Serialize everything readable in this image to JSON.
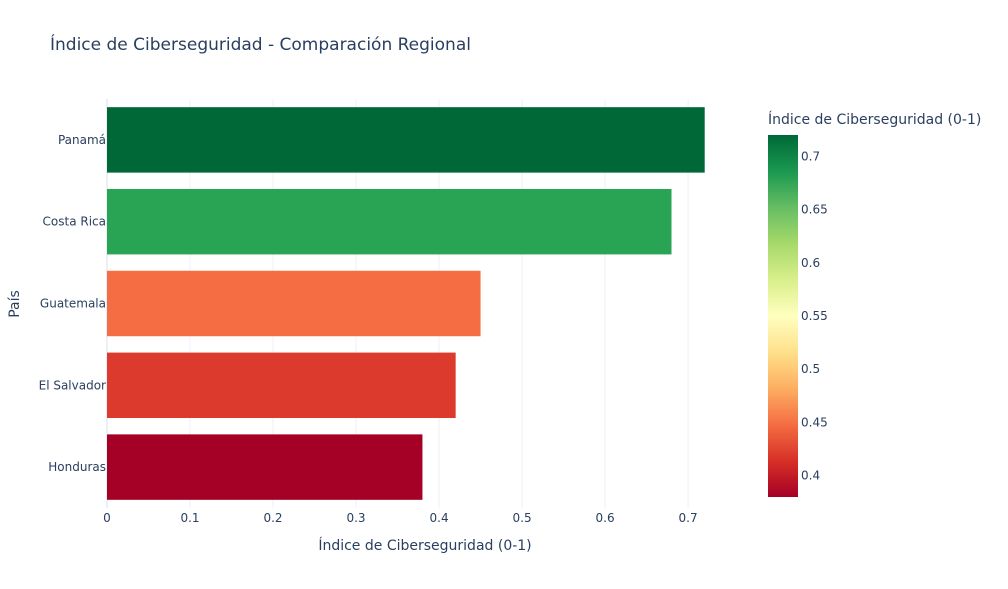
{
  "chart_data": {
    "type": "bar",
    "orientation": "horizontal",
    "title": "Índice de Ciberseguridad - Comparación Regional",
    "xlabel": "Índice de Ciberseguridad (0-1)",
    "ylabel": "País",
    "categories": [
      "Panamá",
      "Costa Rica",
      "Guatemala",
      "El Salvador",
      "Honduras"
    ],
    "values": [
      0.72,
      0.68,
      0.45,
      0.42,
      0.38
    ],
    "bar_colors": [
      "#006837",
      "#29a354",
      "#f46d43",
      "#db3a2c",
      "#a50026"
    ],
    "xlim": [
      0,
      0.73
    ],
    "x_ticks": [
      "0",
      "0.1",
      "0.2",
      "0.3",
      "0.4",
      "0.5",
      "0.6",
      "0.7"
    ],
    "grid": true,
    "colorbar": {
      "title": "Índice de Ciberseguridad (0-1)",
      "range": [
        0.38,
        0.72
      ],
      "ticks": [
        "0.4",
        "0.45",
        "0.5",
        "0.55",
        "0.6",
        "0.65",
        "0.7"
      ],
      "colorscale": "RdYlGn"
    }
  }
}
